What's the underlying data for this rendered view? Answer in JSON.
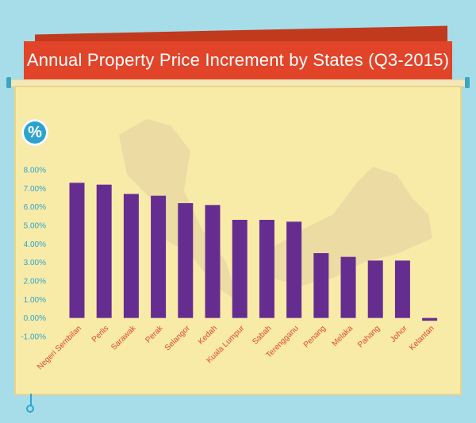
{
  "title": "Annual Property Price Increment by States (Q3-2015)",
  "badge": "%",
  "colors": {
    "bar": "#662d91",
    "tick": "#2ea3cf",
    "category": "#e2442a",
    "ribbon": "#e2442a"
  },
  "chart_data": {
    "type": "bar",
    "title": "Annual Property Price Increment by States (Q3-2015)",
    "xlabel": "",
    "ylabel": "",
    "ylim": [
      -1,
      8
    ],
    "y_ticks": [
      "8.00%",
      "7.00%",
      "6.00%",
      "5.00%",
      "4.00%",
      "3.00%",
      "2.00%",
      "1.00%",
      "0.00%",
      "-1.00%"
    ],
    "y_tick_values": [
      8,
      7,
      6,
      5,
      4,
      3,
      2,
      1,
      0,
      -1
    ],
    "categories": [
      "Negeri Sembilan",
      "Perlis",
      "Sarawak",
      "Perak",
      "Selangor",
      "Kedah",
      "Kuala Lumpur",
      "Sabah",
      "Terengganu",
      "Penang",
      "Melaka",
      "Pahang",
      "Johor",
      "Kelantan"
    ],
    "values": [
      7.3,
      7.2,
      6.7,
      6.6,
      6.2,
      6.1,
      5.3,
      5.3,
      5.2,
      3.5,
      3.3,
      3.1,
      3.1,
      -0.15
    ],
    "grid": false,
    "legend": "none"
  }
}
